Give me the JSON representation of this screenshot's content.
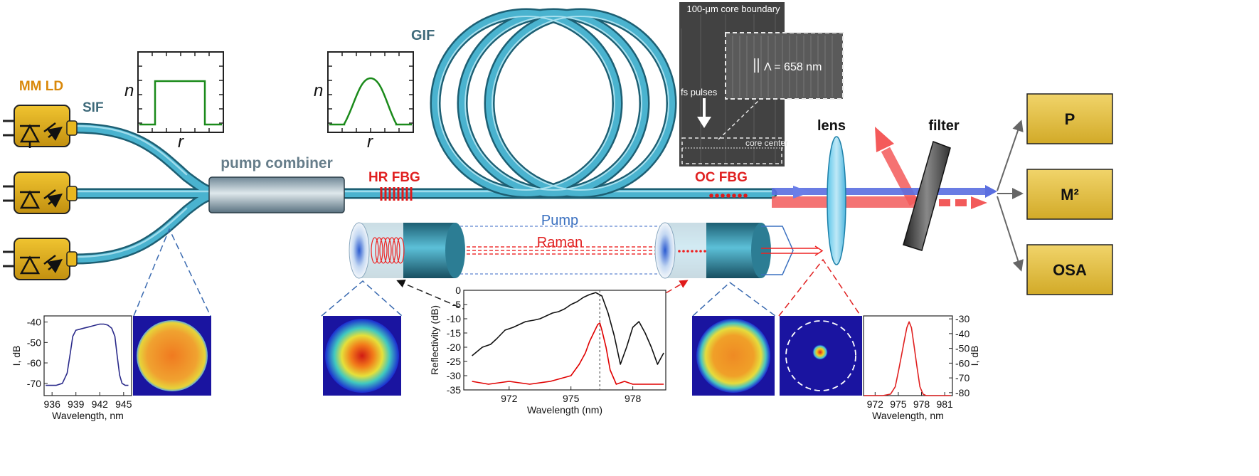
{
  "labels": {
    "mm_ld": "MM LD",
    "sif": "SIF",
    "gif": "GIF",
    "pump_combiner": "pump combiner",
    "hr_fbg": "HR FBG",
    "oc_fbg": "OC FBG",
    "lens": "lens",
    "filter": "filter",
    "pump": "Pump",
    "raman": "Raman",
    "n_axis": "n",
    "r_axis": "r"
  },
  "sem": {
    "core_boundary": "100-μm core boundary",
    "period": "Λ = 658 nm",
    "fs_pulses": "fs pulses",
    "core_center": "core center"
  },
  "detectors": [
    "P",
    "M²",
    "OSA"
  ],
  "colors": {
    "fiber": "#3fa9c6",
    "fiber_dark": "#1e6e85",
    "ld_box": "#d8a814",
    "detector_box": "#e2c24a",
    "red_label": "#e02020",
    "orange_label": "#d9880a",
    "gray_label": "#5f7c8a",
    "pump_blue": "#5a6ee0",
    "raman_red": "#f25a5a"
  },
  "chart_data": [
    {
      "type": "line",
      "name": "pump-spectrum",
      "xlabel": "Wavelength, nm",
      "ylabel": "I, dB",
      "xticks": [
        936,
        939,
        942,
        945
      ],
      "yticks": [
        -40,
        -50,
        -60,
        -70
      ],
      "xlim": [
        935,
        946
      ],
      "ylim": [
        -76,
        -37
      ],
      "series": [
        {
          "name": "pump",
          "color": "#2a2a8a",
          "x": [
            935.2,
            936.5,
            937.3,
            937.9,
            938.3,
            938.6,
            939.0,
            939.5,
            940.0,
            940.5,
            941.0,
            941.5,
            942.0,
            942.5,
            943.0,
            943.5,
            943.9,
            944.2,
            944.5,
            944.8,
            945.2,
            945.6
          ],
          "y": [
            -71,
            -71,
            -70,
            -65,
            -55,
            -47,
            -44,
            -43.5,
            -43,
            -42.5,
            -42,
            -41.5,
            -41,
            -41,
            -41.5,
            -43,
            -47,
            -57,
            -66,
            -70,
            -71,
            -71
          ]
        }
      ]
    },
    {
      "type": "line",
      "name": "fbg-reflectivity",
      "xlabel": "Wavelength (nm)",
      "ylabel": "Reflectivity (dB)",
      "xticks": [
        972,
        975,
        978
      ],
      "yticks": [
        0,
        -5,
        -10,
        -15,
        -20,
        -25,
        -30,
        -35
      ],
      "xlim": [
        969.8,
        979.6
      ],
      "ylim": [
        -35,
        0
      ],
      "marker_x": 976.4,
      "series": [
        {
          "name": "HR FBG",
          "color": "#111111",
          "x": [
            970.2,
            970.7,
            971.1,
            971.4,
            971.8,
            972.2,
            972.5,
            972.8,
            973.2,
            973.5,
            973.8,
            974.1,
            974.4,
            974.7,
            975.0,
            975.3,
            975.6,
            975.9,
            976.2,
            976.5,
            976.8,
            977.1,
            977.4,
            977.7,
            978.0,
            978.3,
            978.6,
            978.9,
            979.2,
            979.5
          ],
          "y": [
            -23,
            -20,
            -19,
            -17,
            -14,
            -13,
            -12,
            -11,
            -10.5,
            -10,
            -9,
            -8,
            -7.5,
            -6.5,
            -5,
            -4,
            -2.5,
            -1.5,
            -0.8,
            -2,
            -8,
            -16,
            -26,
            -20,
            -13,
            -11,
            -15,
            -20,
            -26,
            -22
          ]
        },
        {
          "name": "OC FBG",
          "color": "#e00000",
          "x": [
            970.2,
            971.0,
            972.0,
            973.0,
            974.0,
            975.0,
            975.4,
            975.7,
            975.9,
            976.1,
            976.3,
            976.4,
            976.5,
            976.7,
            976.9,
            977.2,
            977.6,
            978.0,
            979.0,
            979.5
          ],
          "y": [
            -32,
            -33,
            -32,
            -33,
            -32,
            -30,
            -26,
            -22,
            -18,
            -15,
            -12,
            -11.5,
            -14,
            -20,
            -28,
            -33,
            -32,
            -33,
            -33,
            -33
          ]
        }
      ]
    },
    {
      "type": "line",
      "name": "raman-spectrum",
      "xlabel": "Wavelength, nm",
      "ylabel": "I, dB",
      "xticks": [
        972,
        975,
        978,
        981
      ],
      "yticks": [
        -30,
        -40,
        -50,
        -60,
        -70,
        -80
      ],
      "xlim": [
        970.5,
        982
      ],
      "ylim": [
        -82,
        -28
      ],
      "series": [
        {
          "name": "raman",
          "color": "#e02020",
          "x": [
            970.6,
            973.0,
            974.0,
            974.6,
            975.0,
            975.4,
            975.8,
            976.1,
            976.4,
            976.7,
            977.0,
            977.4,
            977.8,
            978.2,
            978.6,
            981.8
          ],
          "y": [
            -82,
            -82,
            -81,
            -76,
            -66,
            -55,
            -44,
            -36,
            -32,
            -36,
            -47,
            -62,
            -76,
            -81,
            -82,
            -82
          ]
        }
      ]
    }
  ]
}
